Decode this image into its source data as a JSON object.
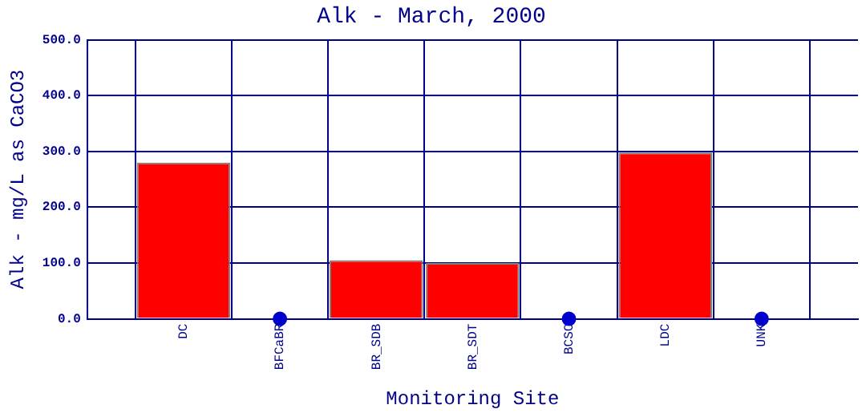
{
  "chart_data": {
    "type": "bar",
    "title": "Alk - March, 2000",
    "xlabel": "Monitoring Site",
    "ylabel": "Alk - mg/L as CaCO3",
    "categories": [
      "DC",
      "BFCaBR",
      "BR_SDB",
      "BR_SDT",
      "BCSC",
      "LDC",
      "UNK"
    ],
    "series": [
      {
        "color": "#ff0000",
        "values": [
          280,
          null,
          105,
          100,
          null,
          298,
          null
        ]
      },
      {
        "type": "scatter",
        "color": "#0000cc",
        "marker": "circle",
        "x": [
          "BFCaBR",
          "BCSC",
          "UNK"
        ],
        "values": [
          0,
          0,
          0
        ]
      }
    ],
    "ylim": [
      0,
      500
    ],
    "yticks": [
      {
        "value": 0,
        "label": "0.0"
      },
      {
        "value": 100,
        "label": "100.0"
      },
      {
        "value": 200,
        "label": "200.0"
      },
      {
        "value": 300,
        "label": "300.0"
      },
      {
        "value": 400,
        "label": "400.0"
      },
      {
        "value": 500,
        "label": "500.0"
      }
    ],
    "grid": true,
    "legend": false
  }
}
